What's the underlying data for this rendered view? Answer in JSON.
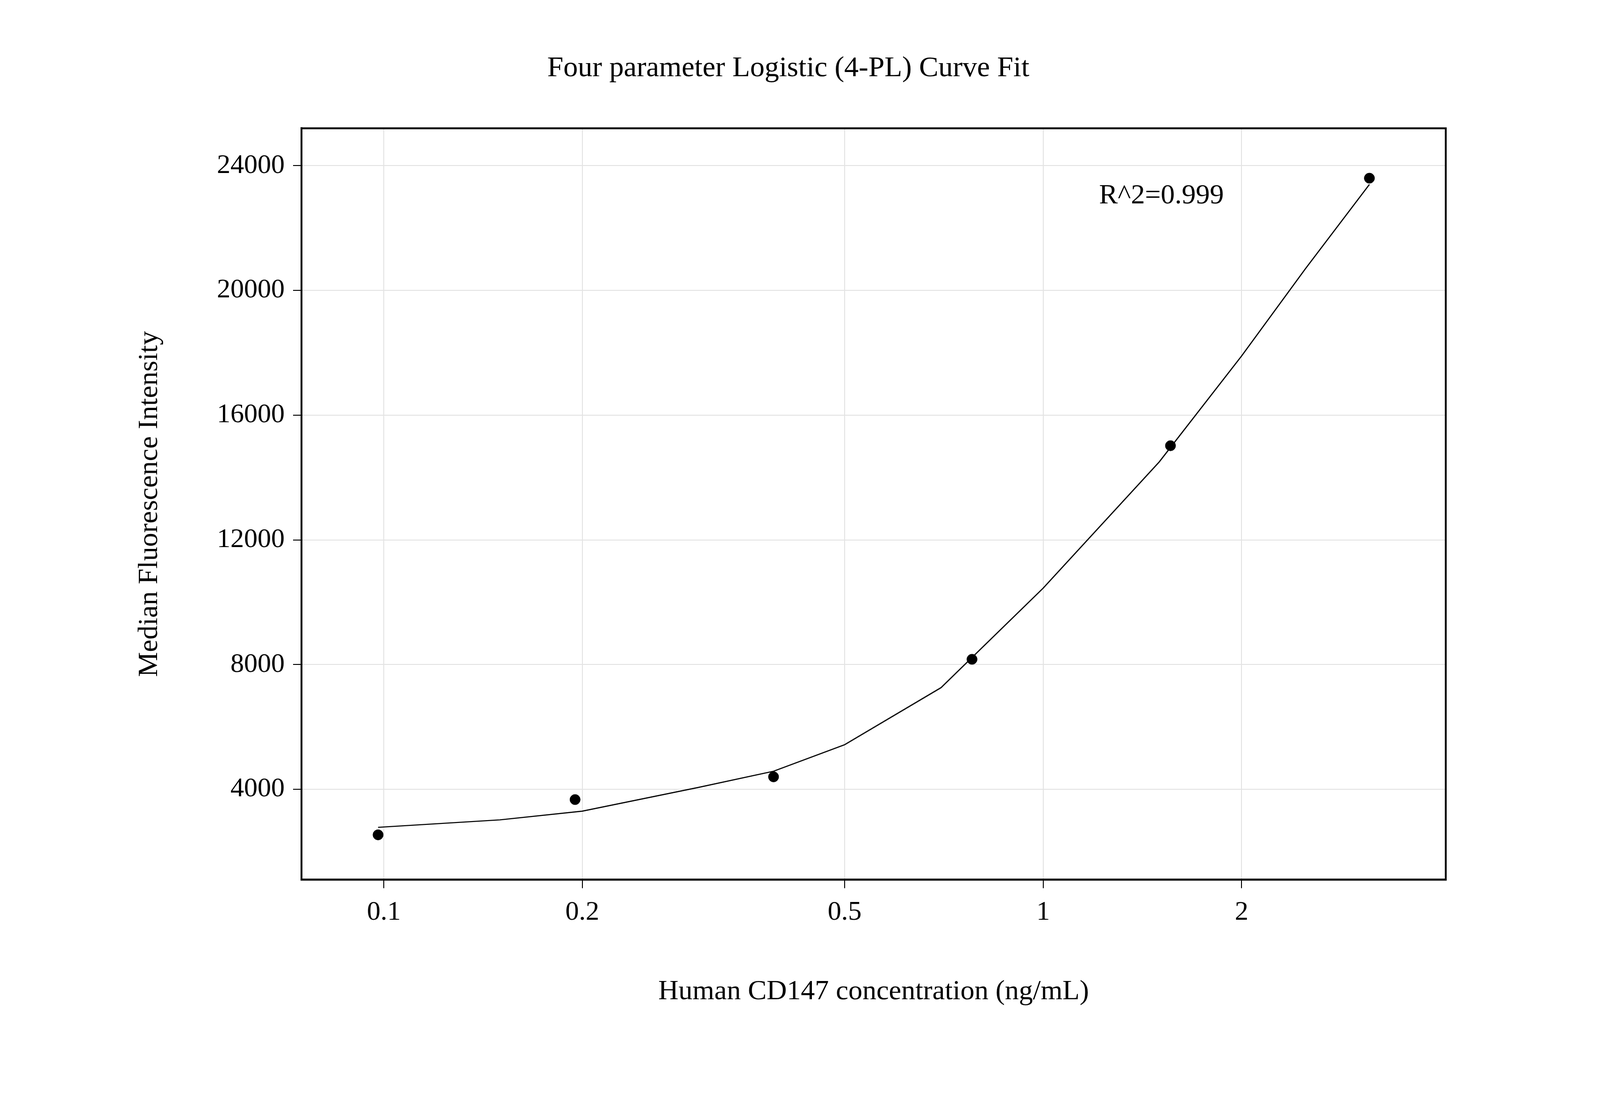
{
  "chart_data": {
    "type": "scatter",
    "title": "Four parameter Logistic (4-PL) Curve Fit",
    "x_label": "Human CD147 concentration (ng/mL)",
    "y_label": "Median Fluorescence Intensity",
    "annotation": "R^2=0.999",
    "log": "x",
    "grid": true,
    "xlim": [
      0.075,
      4.08
    ],
    "xticks": [
      0.1,
      0.2,
      0.5,
      1,
      2
    ],
    "ylim": [
      1100,
      25200
    ],
    "yticks": [
      4000,
      8000,
      12000,
      16000,
      20000,
      24000
    ],
    "series": [
      {
        "type": "scatter",
        "marker": "circle",
        "color": "#000000",
        "x": [
          0.098,
          0.195,
          0.39,
          0.78,
          1.56,
          3.125
        ],
        "values": [
          2540,
          3670,
          4400,
          8170,
          15020,
          23600
        ]
      },
      {
        "type": "line",
        "line_style": "solid",
        "color": "#000000",
        "x": [
          0.098,
          0.15,
          0.2,
          0.3,
          0.39,
          0.5,
          0.7,
          1.0,
          1.5,
          2.0,
          2.5,
          3.125
        ],
        "values": [
          2780,
          3020,
          3300,
          4060,
          4580,
          5430,
          7260,
          10450,
          14500,
          17900,
          20700,
          23400
        ]
      }
    ]
  }
}
